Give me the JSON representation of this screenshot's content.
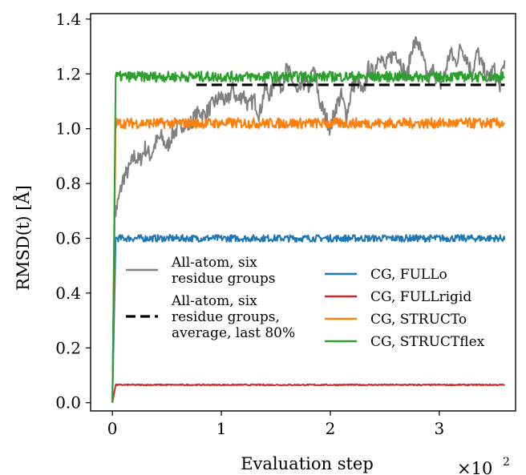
{
  "chart_data": {
    "type": "line",
    "xlabel": "Evaluation step",
    "ylabel": "RMSD(t) [Å]",
    "x_multiplier": "×10",
    "x_multiplier_exp": "2",
    "xlim": [
      -0.2,
      3.7
    ],
    "ylim": [
      -0.03,
      1.42
    ],
    "x_ticks": [
      0,
      1,
      2,
      3
    ],
    "x_tick_labels": [
      "0",
      "1",
      "2",
      "3"
    ],
    "y_ticks": [
      0.0,
      0.2,
      0.4,
      0.6,
      0.8,
      1.0,
      1.2,
      1.4
    ],
    "y_tick_labels": [
      "0.0",
      "0.2",
      "0.4",
      "0.6",
      "0.8",
      "1.0",
      "1.2",
      "1.4"
    ],
    "grid": false,
    "series": [
      {
        "name": "All-atom, six residue groups",
        "legend_lines": [
          "All-atom, six",
          "residue groups"
        ],
        "color": "#808080",
        "style": "solid",
        "x": [
          0.0,
          0.02,
          0.05,
          0.1,
          0.15,
          0.2,
          0.25,
          0.3,
          0.35,
          0.4,
          0.45,
          0.5,
          0.55,
          0.6,
          0.65,
          0.7,
          0.75,
          0.8,
          0.85,
          0.9,
          0.95,
          1.0,
          1.05,
          1.1,
          1.15,
          1.2,
          1.25,
          1.3,
          1.35,
          1.4,
          1.45,
          1.5,
          1.55,
          1.6,
          1.65,
          1.7,
          1.75,
          1.8,
          1.85,
          1.9,
          1.95,
          2.0,
          2.05,
          2.1,
          2.15,
          2.2,
          2.25,
          2.3,
          2.35,
          2.4,
          2.45,
          2.5,
          2.55,
          2.6,
          2.65,
          2.7,
          2.75,
          2.8,
          2.85,
          2.9,
          2.95,
          3.0,
          3.05,
          3.1,
          3.15,
          3.2,
          3.25,
          3.3,
          3.35,
          3.4,
          3.45,
          3.5,
          3.55,
          3.6
        ],
        "y": [
          0.0,
          0.68,
          0.73,
          0.82,
          0.85,
          0.9,
          0.88,
          0.93,
          0.9,
          0.95,
          0.97,
          0.93,
          0.98,
          1.0,
          1.02,
          1.01,
          1.04,
          1.06,
          1.05,
          1.08,
          1.1,
          1.12,
          1.09,
          1.15,
          1.1,
          1.13,
          1.08,
          1.11,
          1.05,
          1.15,
          1.12,
          1.2,
          1.15,
          1.22,
          1.18,
          1.12,
          1.17,
          1.15,
          1.22,
          1.1,
          1.05,
          1.0,
          1.08,
          1.12,
          1.05,
          1.15,
          1.18,
          1.12,
          1.22,
          1.2,
          1.28,
          1.22,
          1.26,
          1.28,
          1.24,
          1.18,
          1.3,
          1.32,
          1.25,
          1.18,
          1.22,
          1.15,
          1.2,
          1.28,
          1.24,
          1.3,
          1.26,
          1.2,
          1.28,
          1.22,
          1.18,
          1.22,
          1.15,
          1.25
        ]
      },
      {
        "name": "All-atom, six residue groups, average, last 80%",
        "legend_lines": [
          "All-atom, six",
          "residue groups,",
          "average, last 80%"
        ],
        "color": "#000000",
        "style": "dashed",
        "x": [
          0.77,
          3.6
        ],
        "y": [
          1.16,
          1.16
        ]
      },
      {
        "name": "CG, FULLo",
        "legend_lines": [
          "CG, FULLo"
        ],
        "color": "#1f77b4",
        "style": "solid",
        "x": [
          0.0,
          0.03,
          3.6
        ],
        "y": [
          0.0,
          0.6,
          0.6
        ],
        "noise": 0.008
      },
      {
        "name": "CG, FULLrigid",
        "legend_lines": [
          "CG, FULLrigid"
        ],
        "color": "#d62728",
        "style": "solid",
        "x": [
          0.0,
          0.03,
          3.6
        ],
        "y": [
          0.0,
          0.065,
          0.065
        ],
        "noise": 0.0015
      },
      {
        "name": "CG, STRUCTo",
        "legend_lines": [
          "CG, STRUCTo"
        ],
        "color": "#ff7f0e",
        "style": "solid",
        "x": [
          0.0,
          0.03,
          3.6
        ],
        "y": [
          0.0,
          1.02,
          1.02
        ],
        "noise": 0.012
      },
      {
        "name": "CG, STRUCTflex",
        "legend_lines": [
          "CG, STRUCTflex"
        ],
        "color": "#2ca02c",
        "style": "solid",
        "x": [
          0.0,
          0.03,
          3.6
        ],
        "y": [
          0.0,
          1.19,
          1.19
        ],
        "noise": 0.012
      }
    ],
    "legend_position": "lower center (two columns)"
  }
}
